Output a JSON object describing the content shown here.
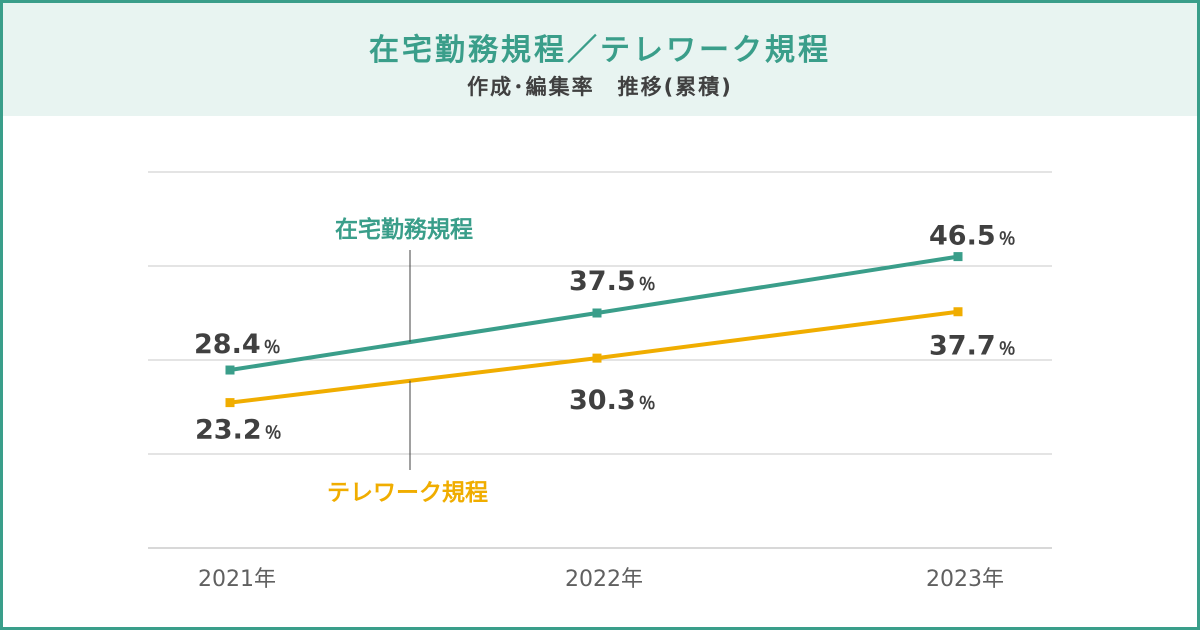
{
  "title": "在宅勤務規程／テレワーク規程",
  "subtitle": "作成･編集率　推移(累積)",
  "colors": {
    "border": "#3a9e8a",
    "header_bg": "#e8f4f1",
    "teal": "#3a9e8a",
    "yellow": "#f0ad00",
    "grid": "#c8c8c8",
    "text": "#404040"
  },
  "chart_data": {
    "type": "line",
    "title": "在宅勤務規程／テレワーク規程",
    "subtitle": "作成･編集率　推移(累積)",
    "categories": [
      "2021年",
      "2022年",
      "2023年"
    ],
    "unit": "％",
    "ylim": [
      0,
      60
    ],
    "grid": true,
    "series": [
      {
        "name": "在宅勤務規程",
        "color": "#3a9e8a",
        "values": [
          28.4,
          37.5,
          46.5
        ],
        "labels": [
          "28.4",
          "37.5",
          "46.5"
        ]
      },
      {
        "name": "テレワーク規程",
        "color": "#f0ad00",
        "values": [
          23.2,
          30.3,
          37.7
        ],
        "labels": [
          "23.2",
          "30.3",
          "37.7"
        ]
      }
    ]
  }
}
